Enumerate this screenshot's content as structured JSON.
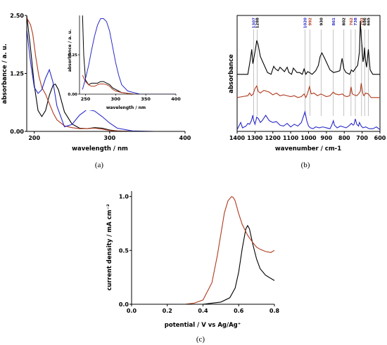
{
  "colors": {
    "black": "#000000",
    "red": "#b03a1e",
    "blue": "#2a2ac8",
    "grey": "#9a9a9a"
  },
  "chart_data": [
    {
      "id": "a",
      "type": "line",
      "caption": "(a)",
      "xlabel": "wavelength / nm",
      "ylabel": "absorbance / a. u.",
      "xlim": [
        190,
        400
      ],
      "ylim": [
        0,
        2.5
      ],
      "xticks": [
        200,
        300,
        400
      ],
      "yticks": [
        0.0,
        1.25,
        2.5
      ],
      "ytick_labels": [
        "0.00",
        "1.25",
        "2.50"
      ],
      "series": [
        {
          "color": "black",
          "x": [
            190,
            195,
            200,
            205,
            210,
            215,
            220,
            225,
            228,
            232,
            240,
            250,
            260,
            270,
            280,
            290,
            300,
            310,
            330,
            360,
            400
          ],
          "y": [
            2.5,
            1.8,
            1.0,
            0.45,
            0.32,
            0.45,
            0.78,
            1.0,
            1.02,
            0.9,
            0.42,
            0.16,
            0.07,
            0.06,
            0.08,
            0.07,
            0.03,
            0.01,
            0.0,
            0.0,
            0.0
          ]
        },
        {
          "color": "red",
          "x": [
            190,
            195,
            198,
            202,
            206,
            210,
            215,
            220,
            225,
            230,
            240,
            250,
            260,
            270,
            280,
            290,
            300,
            310,
            330,
            400
          ],
          "y": [
            2.45,
            2.3,
            2.1,
            1.6,
            1.2,
            0.95,
            0.8,
            0.6,
            0.4,
            0.25,
            0.12,
            0.08,
            0.06,
            0.06,
            0.07,
            0.05,
            0.02,
            0.01,
            0.0,
            0.0
          ]
        },
        {
          "color": "blue",
          "x": [
            190,
            195,
            200,
            205,
            210,
            215,
            220,
            225,
            230,
            240,
            250,
            260,
            270,
            280,
            290,
            300,
            310,
            330,
            360,
            400
          ],
          "y": [
            2.2,
            1.5,
            0.95,
            0.82,
            0.9,
            1.15,
            1.33,
            1.05,
            0.55,
            0.1,
            0.15,
            0.35,
            0.47,
            0.44,
            0.32,
            0.18,
            0.07,
            0.01,
            0.0,
            0.0
          ]
        }
      ],
      "inset": {
        "xlabel": "wavelength / nm",
        "ylabel": "absorbance / a. u.",
        "xlim": [
          240,
          400
        ],
        "ylim": [
          0,
          0.5
        ],
        "xticks": [
          250,
          300,
          350,
          400
        ],
        "yticks": [
          0.0,
          0.25
        ],
        "ytick_labels": [
          "0.00",
          "0.25"
        ],
        "series": [
          {
            "color": "black",
            "x": [
              245,
              247,
              250,
              255,
              260,
              265,
              270,
              275,
              280,
              285,
              290,
              295,
              300,
              310,
              330,
              400
            ],
            "y": [
              0.5,
              0.25,
              0.09,
              0.06,
              0.07,
              0.07,
              0.07,
              0.08,
              0.08,
              0.07,
              0.06,
              0.04,
              0.03,
              0.01,
              0.0,
              0.0
            ]
          },
          {
            "color": "red",
            "x": [
              245,
              250,
              255,
              260,
              265,
              270,
              275,
              280,
              285,
              290,
              295,
              300,
              310,
              330,
              400
            ],
            "y": [
              0.12,
              0.08,
              0.06,
              0.05,
              0.05,
              0.06,
              0.065,
              0.065,
              0.06,
              0.05,
              0.03,
              0.02,
              0.01,
              0.0,
              0.0
            ]
          },
          {
            "color": "blue",
            "x": [
              245,
              250,
              255,
              260,
              265,
              270,
              275,
              280,
              285,
              290,
              295,
              300,
              305,
              310,
              320,
              340,
              400
            ],
            "y": [
              0.03,
              0.1,
              0.18,
              0.28,
              0.37,
              0.44,
              0.48,
              0.48,
              0.46,
              0.4,
              0.3,
              0.2,
              0.12,
              0.06,
              0.02,
              0.0,
              0.0
            ]
          }
        ]
      }
    },
    {
      "id": "b",
      "type": "line",
      "caption": "(b)",
      "xlabel": "wavenumber / cm-1",
      "ylabel": "absorbance",
      "xlim": [
        1400,
        600
      ],
      "xticks": [
        1400,
        1300,
        1200,
        1100,
        1000,
        900,
        800,
        700,
        600
      ],
      "peak_labels": [
        {
          "text": "1307",
          "x": 1307,
          "color": "blue"
        },
        {
          "text": "1288",
          "x": 1288,
          "color": "black"
        },
        {
          "text": "1020",
          "x": 1020,
          "color": "blue"
        },
        {
          "text": "992",
          "x": 992,
          "color": "red"
        },
        {
          "text": "930",
          "x": 930,
          "color": "black"
        },
        {
          "text": "861",
          "x": 861,
          "color": "blue"
        },
        {
          "text": "802",
          "x": 802,
          "color": "black"
        },
        {
          "text": "762",
          "x": 762,
          "color": "red"
        },
        {
          "text": "738",
          "x": 738,
          "color": "blue"
        },
        {
          "text": "703",
          "x": 703,
          "color": "red"
        },
        {
          "text": "686",
          "x": 686,
          "color": "black"
        },
        {
          "text": "665",
          "x": 665,
          "color": "black"
        }
      ],
      "series": [
        {
          "color": "black",
          "offset": 0.62,
          "x": [
            1400,
            1340,
            1325,
            1318,
            1312,
            1300,
            1290,
            1282,
            1270,
            1230,
            1210,
            1195,
            1185,
            1170,
            1160,
            1145,
            1135,
            1120,
            1110,
            1095,
            1085,
            1065,
            1050,
            1035,
            1025,
            1015,
            1005,
            995,
            980,
            960,
            945,
            935,
            925,
            910,
            880,
            860,
            840,
            825,
            812,
            802,
            790,
            770,
            760,
            750,
            740,
            725,
            715,
            710,
            705,
            700,
            695,
            690,
            686,
            682,
            675,
            665,
            655,
            640,
            620,
            600
          ],
          "y": [
            0.0,
            0.0,
            0.18,
            0.28,
            0.12,
            0.25,
            0.38,
            0.33,
            0.2,
            0.02,
            0.0,
            0.09,
            0.06,
            0.04,
            0.08,
            0.05,
            0.03,
            0.08,
            0.02,
            0.0,
            0.07,
            0.02,
            0.02,
            0.0,
            0.06,
            0.0,
            0.03,
            0.02,
            0.0,
            0.04,
            0.1,
            0.2,
            0.24,
            0.18,
            0.05,
            0.02,
            0.03,
            0.04,
            0.18,
            0.06,
            0.02,
            0.0,
            0.05,
            0.03,
            0.06,
            0.1,
            0.25,
            0.6,
            0.42,
            0.3,
            0.14,
            0.2,
            0.3,
            0.17,
            0.08,
            0.28,
            0.05,
            0.0,
            0.0,
            0.0
          ]
        },
        {
          "color": "red",
          "offset": 0.36,
          "x": [
            1400,
            1370,
            1340,
            1330,
            1320,
            1310,
            1300,
            1290,
            1282,
            1270,
            1250,
            1220,
            1200,
            1180,
            1160,
            1140,
            1120,
            1100,
            1080,
            1060,
            1040,
            1025,
            1015,
            1005,
            995,
            985,
            970,
            950,
            930,
            900,
            880,
            862,
            850,
            830,
            810,
            800,
            785,
            770,
            762,
            755,
            745,
            730,
            720,
            710,
            705,
            700,
            695,
            690,
            680,
            665,
            650,
            630,
            600
          ],
          "y": [
            0.0,
            0.01,
            0.02,
            0.05,
            0.02,
            0.04,
            0.1,
            0.13,
            0.07,
            0.05,
            0.08,
            0.06,
            0.03,
            0.05,
            0.02,
            0.03,
            0.02,
            0.01,
            0.02,
            0.0,
            0.01,
            0.04,
            0.0,
            0.05,
            0.12,
            0.04,
            0.05,
            0.02,
            0.04,
            0.01,
            0.02,
            0.06,
            0.04,
            0.03,
            0.04,
            0.02,
            0.01,
            0.02,
            0.12,
            0.04,
            0.03,
            0.02,
            0.04,
            0.07,
            0.16,
            0.09,
            0.04,
            0.02,
            0.05,
            0.04,
            0.0,
            0.0,
            0.0
          ]
        },
        {
          "color": "blue",
          "offset": 0.0,
          "x": [
            1400,
            1390,
            1380,
            1370,
            1350,
            1340,
            1330,
            1320,
            1312,
            1307,
            1300,
            1290,
            1280,
            1270,
            1260,
            1240,
            1220,
            1200,
            1180,
            1160,
            1140,
            1120,
            1100,
            1080,
            1060,
            1040,
            1030,
            1020,
            1010,
            1000,
            990,
            975,
            960,
            940,
            920,
            900,
            880,
            870,
            861,
            855,
            840,
            820,
            805,
            790,
            775,
            760,
            750,
            745,
            738,
            730,
            720,
            715,
            705,
            695,
            680,
            660,
            640,
            620,
            600
          ],
          "y": [
            0.0,
            0.04,
            0.08,
            0.02,
            0.04,
            0.07,
            0.06,
            0.1,
            0.16,
            0.1,
            0.06,
            0.14,
            0.12,
            0.08,
            0.1,
            0.16,
            0.1,
            0.08,
            0.09,
            0.05,
            0.04,
            0.07,
            0.03,
            0.06,
            0.04,
            0.08,
            0.14,
            0.2,
            0.1,
            0.04,
            0.02,
            0.01,
            0.03,
            0.02,
            0.03,
            0.02,
            0.01,
            0.05,
            0.1,
            0.05,
            0.02,
            0.04,
            0.03,
            0.02,
            0.04,
            0.07,
            0.05,
            0.06,
            0.12,
            0.06,
            0.04,
            0.08,
            0.04,
            0.02,
            0.03,
            0.01,
            0.01,
            0.03,
            0.0
          ]
        }
      ]
    },
    {
      "id": "c",
      "type": "line",
      "caption": "(c)",
      "xlabel": "potential / V vs Ag/Ag⁺",
      "ylabel": "current density / mA cm⁻²",
      "xlim": [
        0.0,
        0.8
      ],
      "ylim": [
        0.0,
        1.05
      ],
      "xticks": [
        0.0,
        0.2,
        0.4,
        0.6,
        0.8
      ],
      "xtick_labels": [
        "0.0",
        "0.2",
        "0.4",
        "0.6",
        "0.8"
      ],
      "yticks": [
        0.0,
        0.5,
        1.0
      ],
      "ytick_labels": [
        "0.0",
        "0.5",
        "1.0"
      ],
      "series": [
        {
          "color": "black",
          "x": [
            0.0,
            0.2,
            0.3,
            0.4,
            0.45,
            0.5,
            0.55,
            0.58,
            0.6,
            0.62,
            0.64,
            0.65,
            0.66,
            0.68,
            0.7,
            0.72,
            0.75,
            0.8
          ],
          "y": [
            0.0,
            0.0,
            0.0,
            0.0,
            0.01,
            0.02,
            0.06,
            0.15,
            0.3,
            0.52,
            0.7,
            0.73,
            0.7,
            0.55,
            0.42,
            0.33,
            0.27,
            0.22
          ]
        },
        {
          "color": "red",
          "x": [
            0.0,
            0.1,
            0.2,
            0.3,
            0.35,
            0.4,
            0.45,
            0.48,
            0.5,
            0.52,
            0.54,
            0.56,
            0.57,
            0.58,
            0.6,
            0.62,
            0.65,
            0.68,
            0.7,
            0.72,
            0.75,
            0.78,
            0.8
          ],
          "y": [
            0.0,
            0.0,
            0.0,
            0.0,
            0.01,
            0.04,
            0.2,
            0.45,
            0.65,
            0.85,
            0.96,
            1.0,
            0.99,
            0.96,
            0.84,
            0.74,
            0.64,
            0.57,
            0.53,
            0.51,
            0.49,
            0.48,
            0.5
          ]
        }
      ]
    }
  ]
}
